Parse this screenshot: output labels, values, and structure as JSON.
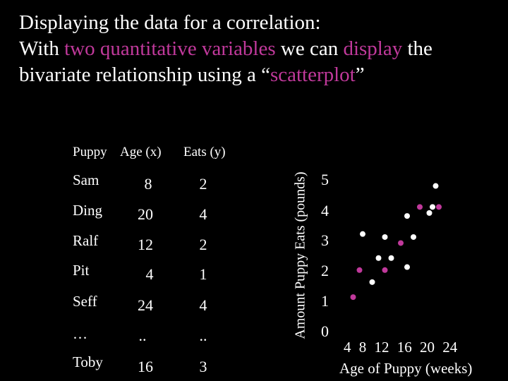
{
  "heading": {
    "line1": "Displaying the data for a correlation:",
    "line2_parts": [
      "With ",
      "two quantitative variables",
      " we can ",
      "display",
      " the"
    ],
    "line3_parts": [
      "bivariate relationship using a “",
      "scatterplot",
      "”"
    ]
  },
  "table": {
    "headers": [
      "Puppy",
      "Age (x)",
      "Eats (y)"
    ],
    "rows": [
      {
        "name": "Sam",
        "age": "8",
        "eats": "2"
      },
      {
        "name": "Ding",
        "age": "20",
        "eats": "4"
      },
      {
        "name": "Ralf",
        "age": "12",
        "eats": "2"
      },
      {
        "name": "Pit",
        "age": "4",
        "eats": "1"
      },
      {
        "name": "Seff",
        "age": "24",
        "eats": "4"
      },
      {
        "name": "…",
        "age": "..",
        "eats": ".."
      },
      {
        "name": "Toby",
        "age": "16",
        "eats": "3"
      }
    ]
  },
  "colors": {
    "highlight": "#c0399b",
    "white_point": "#ffffff",
    "magenta_point": "#c0399b",
    "background": "#000000"
  },
  "chart_data": {
    "type": "scatter",
    "xlabel": "Age of Puppy (weeks)",
    "ylabel": "Amount Puppy Eats (pounds)",
    "x_tick_labels": "4  8  12  16  20  24",
    "y_tick_labels": [
      "5",
      "4",
      "3",
      "2",
      "1",
      "0"
    ],
    "xlim": [
      0,
      26
    ],
    "ylim": [
      0,
      5.5
    ],
    "points": [
      {
        "x": 4.5,
        "y": 1.1,
        "color": "magenta"
      },
      {
        "x": 5.5,
        "y": 2.0,
        "color": "magenta"
      },
      {
        "x": 6.0,
        "y": 3.2,
        "color": "white"
      },
      {
        "x": 7.5,
        "y": 1.6,
        "color": "white"
      },
      {
        "x": 8.5,
        "y": 2.4,
        "color": "white"
      },
      {
        "x": 9.5,
        "y": 3.1,
        "color": "white"
      },
      {
        "x": 9.5,
        "y": 2.0,
        "color": "magenta"
      },
      {
        "x": 10.5,
        "y": 2.4,
        "color": "white"
      },
      {
        "x": 12.0,
        "y": 2.9,
        "color": "magenta"
      },
      {
        "x": 13.0,
        "y": 2.1,
        "color": "white"
      },
      {
        "x": 13.0,
        "y": 3.8,
        "color": "white"
      },
      {
        "x": 14.0,
        "y": 3.1,
        "color": "white"
      },
      {
        "x": 15.0,
        "y": 4.1,
        "color": "magenta"
      },
      {
        "x": 16.5,
        "y": 3.9,
        "color": "white"
      },
      {
        "x": 17.0,
        "y": 4.1,
        "color": "white"
      },
      {
        "x": 17.5,
        "y": 4.8,
        "color": "white"
      },
      {
        "x": 18.0,
        "y": 4.1,
        "color": "magenta"
      }
    ]
  }
}
